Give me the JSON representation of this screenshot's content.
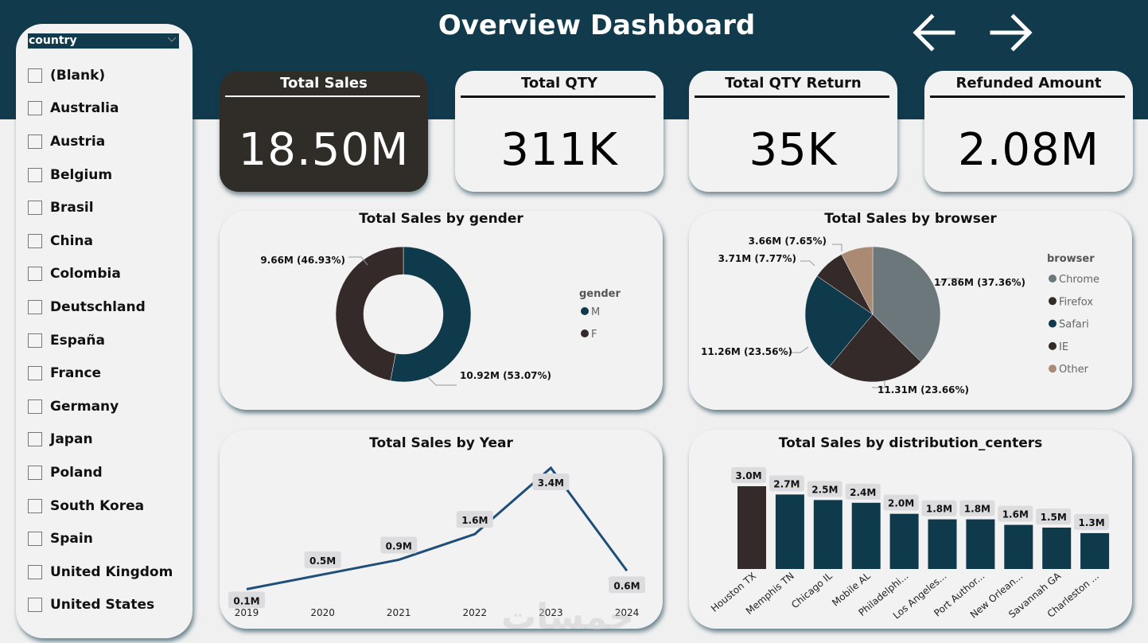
{
  "header": {
    "title": "Overview Dashboard",
    "back_icon": "arrow-left-icon",
    "forward_icon": "arrow-right-icon"
  },
  "colors": {
    "header_bg": "#113b4d",
    "card_bg": "#f2f2f2",
    "dark_card": "#302c28",
    "series_dark": "#342a29",
    "series_navy": "#0f3a4c",
    "chrome": "#6b777a",
    "other": "#ab8a73",
    "line": "#1f4e79",
    "label_bg": "#dcdcdf"
  },
  "slicer": {
    "title": "country",
    "items": [
      {
        "label": "(Blank)",
        "checked": false
      },
      {
        "label": "Australia",
        "checked": false
      },
      {
        "label": "Austria",
        "checked": false
      },
      {
        "label": "Belgium",
        "checked": false
      },
      {
        "label": "Brasil",
        "checked": false
      },
      {
        "label": "China",
        "checked": false
      },
      {
        "label": "Colombia",
        "checked": false
      },
      {
        "label": "Deutschland",
        "checked": false
      },
      {
        "label": "España",
        "checked": false
      },
      {
        "label": "France",
        "checked": false
      },
      {
        "label": "Germany",
        "checked": false
      },
      {
        "label": "Japan",
        "checked": false
      },
      {
        "label": "Poland",
        "checked": false
      },
      {
        "label": "South Korea",
        "checked": false
      },
      {
        "label": "Spain",
        "checked": false
      },
      {
        "label": "United Kingdom",
        "checked": false
      },
      {
        "label": "United States",
        "checked": false
      }
    ]
  },
  "kpis": [
    {
      "title": "Total Sales",
      "value": "18.50M"
    },
    {
      "title": "Total QTY",
      "value": "311K"
    },
    {
      "title": "Total QTY Return",
      "value": "35K"
    },
    {
      "title": "Refunded Amount",
      "value": "2.08M"
    }
  ],
  "watermark": "خمسات",
  "chart_data": [
    {
      "type": "pie",
      "variant": "donut",
      "title": "Total Sales by gender",
      "legend_title": "gender",
      "legend_position": "right",
      "slices": [
        {
          "name": "M",
          "value": 10.92,
          "percent": 53.07,
          "label": "10.92M (53.07%)",
          "color": "#0f3a4c"
        },
        {
          "name": "F",
          "value": 9.66,
          "percent": 46.93,
          "label": "9.66M (46.93%)",
          "color": "#342a29"
        }
      ]
    },
    {
      "type": "pie",
      "title": "Total Sales by browser",
      "legend_title": "browser",
      "legend_position": "right",
      "slices": [
        {
          "name": "Chrome",
          "value": 17.86,
          "percent": 37.36,
          "label": "17.86M (37.36%)",
          "color": "#6b777a"
        },
        {
          "name": "Firefox",
          "value": 11.31,
          "percent": 23.66,
          "label": "11.31M (23.66%)",
          "color": "#342a29"
        },
        {
          "name": "Safari",
          "value": 11.26,
          "percent": 23.56,
          "label": "11.26M (23.56%)",
          "color": "#0f3a4c"
        },
        {
          "name": "IE",
          "value": 3.71,
          "percent": 7.77,
          "label": "3.71M (7.77%)",
          "color": "#342a29"
        },
        {
          "name": "Other",
          "value": 3.66,
          "percent": 7.65,
          "label": "3.66M (7.65%)",
          "color": "#ab8a73"
        }
      ]
    },
    {
      "type": "line",
      "title": "Total Sales by Year",
      "xlabel": "",
      "ylabel": "",
      "x": [
        "2019",
        "2020",
        "2021",
        "2022",
        "2023",
        "2024"
      ],
      "values": [
        0.1,
        0.5,
        0.9,
        1.6,
        3.4,
        0.6
      ],
      "data_labels": [
        "0.1M",
        "0.5M",
        "0.9M",
        "1.6M",
        "3.4M",
        "0.6M"
      ],
      "ylim": [
        0,
        3.4
      ],
      "grid": false
    },
    {
      "type": "bar",
      "title": "Total Sales by distribution_centers",
      "categories": [
        "Houston TX",
        "Memphis TN",
        "Chicago IL",
        "Mobile AL",
        "Philadelphi...",
        "Los Angeles...",
        "Port Author...",
        "New Orlean...",
        "Savannah GA",
        "Charleston ..."
      ],
      "values": [
        3.0,
        2.7,
        2.5,
        2.4,
        2.0,
        1.8,
        1.8,
        1.6,
        1.5,
        1.3
      ],
      "data_labels": [
        "3.0M",
        "2.7M",
        "2.5M",
        "2.4M",
        "2.0M",
        "1.8M",
        "1.8M",
        "1.6M",
        "1.5M",
        "1.3M"
      ],
      "highlight_index": 0,
      "ylim": [
        0,
        3.0
      ],
      "grid": false
    }
  ]
}
